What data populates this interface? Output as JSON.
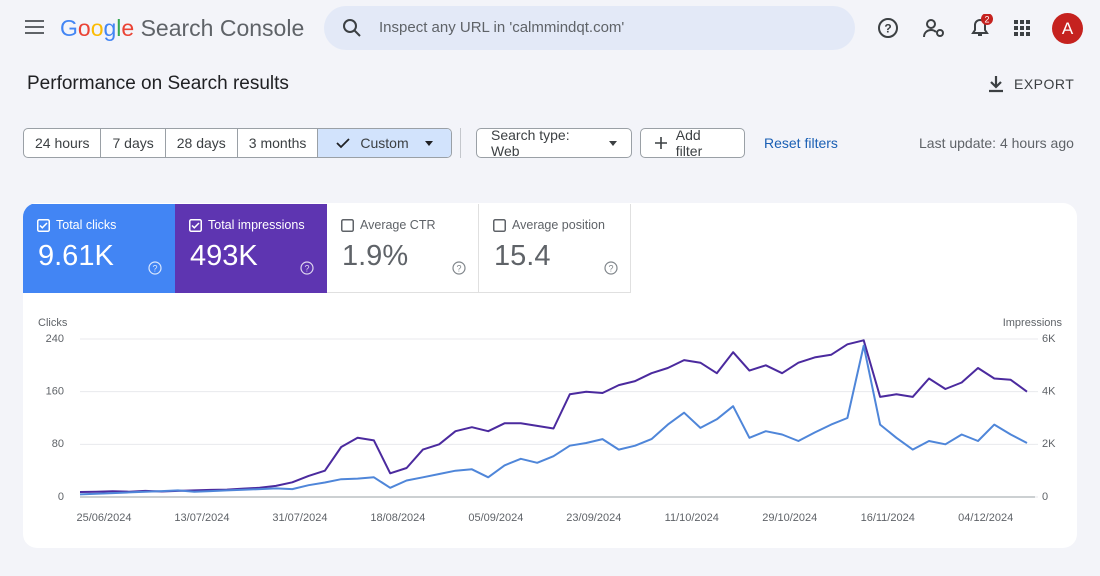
{
  "header": {
    "logo": "Google",
    "product": "Search Console",
    "search_placeholder": "Inspect any URL in 'calmmindqt.com'",
    "notification_count": "2",
    "avatar": "A"
  },
  "page": {
    "title": "Performance on Search results",
    "export": "EXPORT"
  },
  "filters": {
    "date_ranges": [
      "24 hours",
      "7 days",
      "28 days",
      "3 months",
      "Custom"
    ],
    "selected_range": 4,
    "search_type": "Search type: Web",
    "add_filter": "Add filter",
    "reset": "Reset filters",
    "last_update": "Last update: 4 hours ago"
  },
  "metrics": [
    {
      "label": "Total clicks",
      "value": "9.61K",
      "selected": true,
      "color": "#4285f4"
    },
    {
      "label": "Total impressions",
      "value": "493K",
      "selected": true,
      "color": "#5e35b1"
    },
    {
      "label": "Average CTR",
      "value": "1.9%",
      "selected": false,
      "color": "#00897b"
    },
    {
      "label": "Average position",
      "value": "15.4",
      "selected": false,
      "color": "#e8710a"
    }
  ],
  "chart_data": {
    "type": "line",
    "categories": [
      "25/06/2024",
      null,
      null,
      null,
      null,
      null,
      "13/07/2024",
      null,
      null,
      null,
      null,
      null,
      "31/07/2024",
      null,
      null,
      null,
      null,
      null,
      "18/08/2024",
      null,
      null,
      null,
      null,
      null,
      "05/09/2024",
      null,
      null,
      null,
      null,
      null,
      "23/09/2024",
      null,
      null,
      null,
      null,
      null,
      "11/10/2024",
      null,
      null,
      null,
      null,
      null,
      "29/10/2024",
      null,
      null,
      null,
      null,
      null,
      "16/11/2024",
      null,
      null,
      null,
      null,
      null,
      "04/12/2024",
      null,
      null,
      null,
      null
    ],
    "series": [
      {
        "name": "Clicks",
        "color": "#4f86d9",
        "values": [
          4,
          5,
          6,
          7,
          8,
          9,
          10,
          8,
          9,
          10,
          11,
          12,
          13,
          12,
          18,
          22,
          27,
          28,
          30,
          14,
          25,
          30,
          35,
          40,
          42,
          30,
          48,
          58,
          52,
          62,
          78,
          82,
          88,
          72,
          78,
          88,
          110,
          128,
          105,
          118,
          138,
          90,
          100,
          95,
          85,
          98,
          110,
          120,
          230,
          110,
          90,
          72,
          85,
          80,
          95,
          85,
          110,
          95,
          82
        ]
      },
      {
        "name": "Impressions",
        "color": "#4b2a9e",
        "axis": "y2",
        "values": [
          190,
          200,
          220,
          200,
          230,
          210,
          230,
          250,
          270,
          280,
          320,
          350,
          420,
          560,
          800,
          1000,
          1900,
          2250,
          2150,
          900,
          1100,
          1800,
          2000,
          2500,
          2650,
          2500,
          2800,
          2800,
          2700,
          2600,
          3900,
          4000,
          3950,
          4250,
          4400,
          4700,
          4900,
          5200,
          5100,
          4700,
          5500,
          4800,
          5000,
          4700,
          5100,
          5300,
          5400,
          5800,
          5950,
          3800,
          3900,
          3800,
          4500,
          4100,
          4350,
          4900,
          4500,
          4450,
          4000
        ]
      }
    ],
    "ylim": [
      0,
      240
    ],
    "yticks": [
      0,
      80,
      160,
      240
    ],
    "y2lim": [
      0,
      6000
    ],
    "y2ticks": [
      0,
      {
        "value": 2000,
        "label": "2K"
      },
      {
        "value": 4000,
        "label": "4K"
      },
      {
        "value": 6000,
        "label": "6K"
      }
    ],
    "grid": true
  }
}
